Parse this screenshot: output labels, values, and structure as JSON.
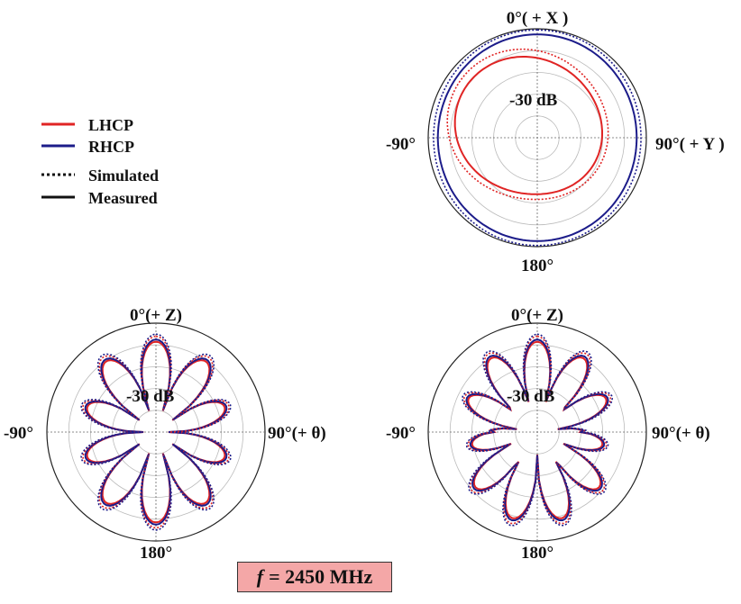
{
  "legend": {
    "items": [
      {
        "label": "LHCP",
        "style": "solid",
        "color": "#e02424"
      },
      {
        "label": "RHCP",
        "style": "solid",
        "color": "#1c1c8a"
      },
      {
        "label": "Simulated",
        "style": "dotted",
        "color": "#111111"
      },
      {
        "label": "Measured",
        "style": "solid",
        "color": "#111111"
      }
    ]
  },
  "colors": {
    "lhcp": "#e02424",
    "rhcp": "#1c1c8a",
    "grid": "#bbbbbb",
    "frame": "#222222"
  },
  "frequency": {
    "symbol": "f",
    "text": "= 2450 MHz"
  },
  "chart_data": [
    {
      "type": "polar",
      "plane": "xy",
      "labels": {
        "top": "0°( + X )",
        "right": "90°( + Y )",
        "left": "-90°",
        "bottom": "180°",
        "ring": "-30 dB"
      },
      "series": [
        {
          "name": "RHCP",
          "kind": "Simulated",
          "pattern": "near-circle",
          "level": 0.97
        },
        {
          "name": "RHCP",
          "kind": "Measured",
          "pattern": "near-circle",
          "level": 0.93
        },
        {
          "name": "LHCP",
          "kind": "Simulated",
          "pattern": "skewed",
          "level": 0.83
        },
        {
          "name": "LHCP",
          "kind": "Measured",
          "pattern": "skewed",
          "level": 0.76
        }
      ]
    },
    {
      "type": "polar",
      "plane": "xz",
      "labels": {
        "top": "0°(+ Z)",
        "right": "90°(+ θ)",
        "left": "-90°",
        "bottom": "180°",
        "ring": "-30 dB"
      },
      "series": [
        {
          "name": "LHCP",
          "kind": "Measured",
          "lobes": 10,
          "level": 0.83
        },
        {
          "name": "RHCP",
          "kind": "Measured",
          "lobes": 10,
          "level": 0.85
        },
        {
          "name": "LHCP",
          "kind": "Simulated",
          "lobes": 10,
          "level": 0.88
        },
        {
          "name": "RHCP",
          "kind": "Simulated",
          "lobes": 10,
          "level": 0.9
        }
      ]
    },
    {
      "type": "polar",
      "plane": "yz",
      "labels": {
        "top": "0°(+ Z)",
        "right": "90°(+ θ)",
        "left": "-90°",
        "bottom": "180°",
        "ring": "-30 dB"
      },
      "series": [
        {
          "name": "LHCP",
          "kind": "Measured",
          "lobes": 11,
          "level": 0.83
        },
        {
          "name": "RHCP",
          "kind": "Measured",
          "lobes": 11,
          "level": 0.85
        },
        {
          "name": "LHCP",
          "kind": "Simulated",
          "lobes": 11,
          "level": 0.88
        },
        {
          "name": "RHCP",
          "kind": "Simulated",
          "lobes": 11,
          "level": 0.9
        }
      ]
    }
  ]
}
